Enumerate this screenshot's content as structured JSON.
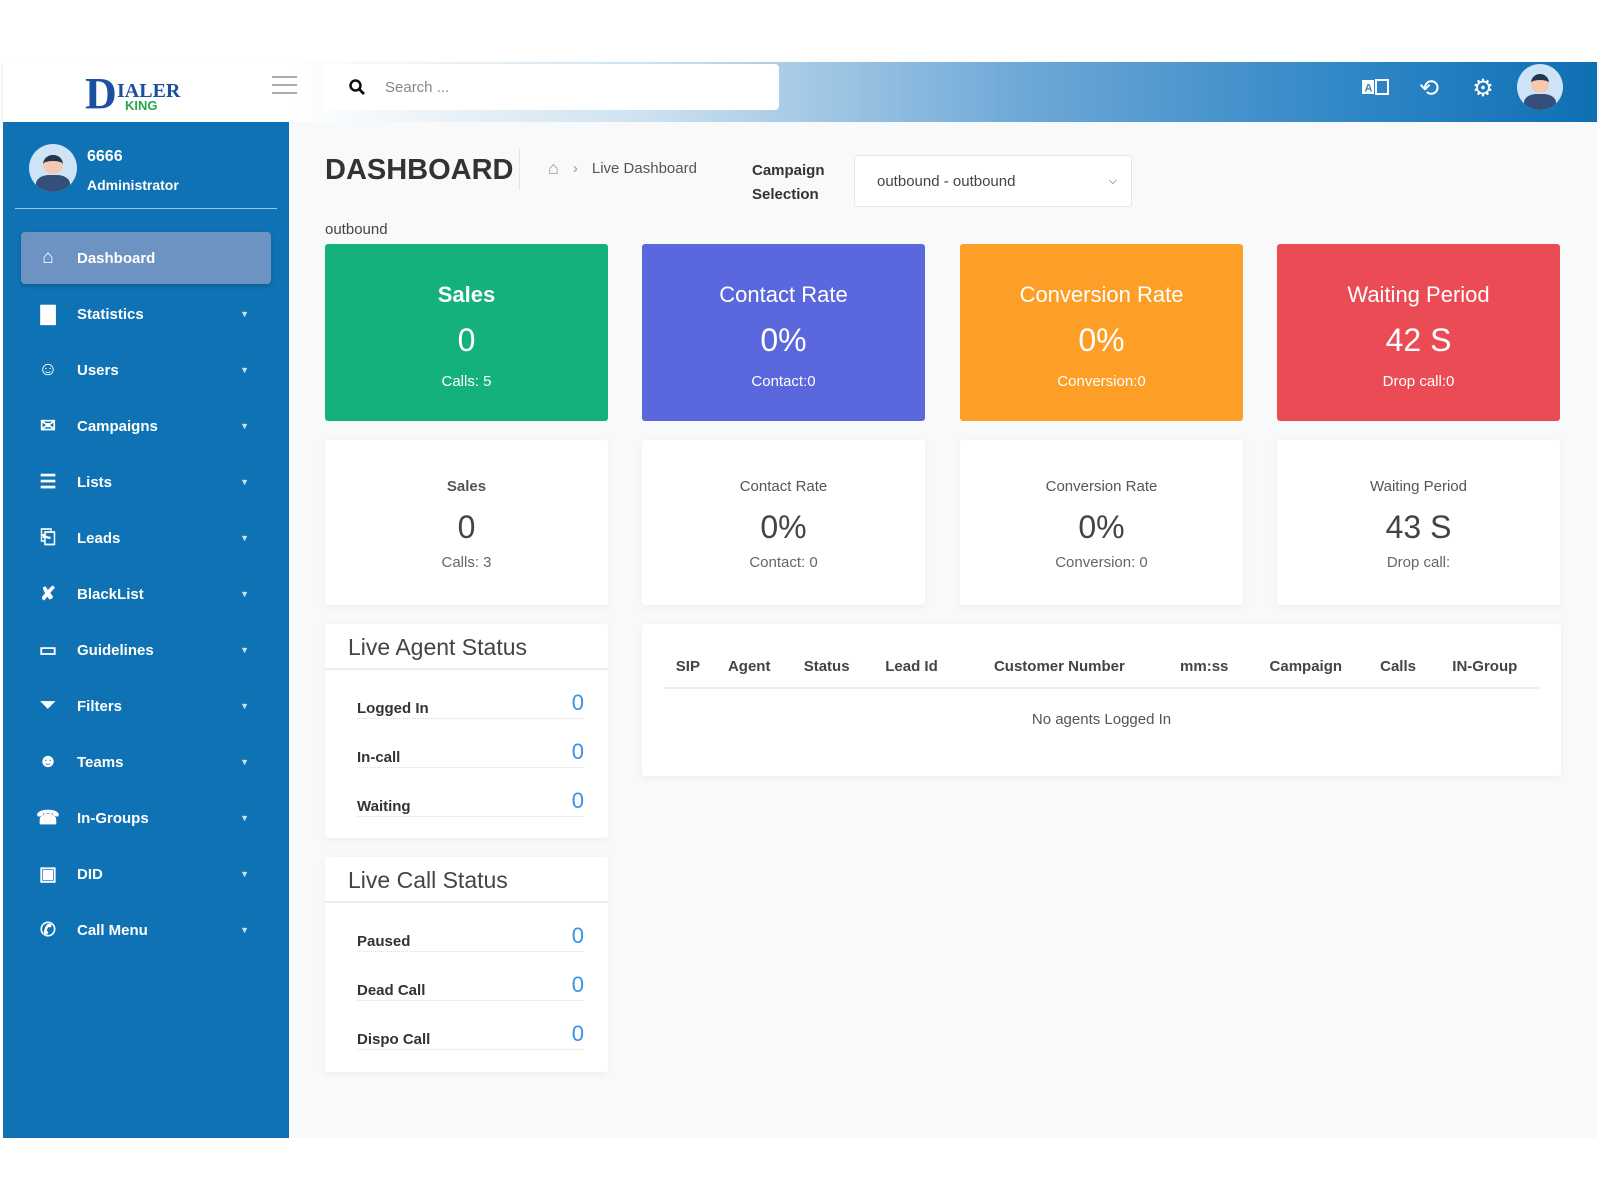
{
  "header": {
    "logo_text": "DIALER KING",
    "search_placeholder": "Search ...",
    "icons": [
      "translate-icon",
      "history-icon",
      "settings-icon",
      "avatar"
    ]
  },
  "sidebar": {
    "user": {
      "name": "6666",
      "role": "Administrator"
    },
    "items": [
      {
        "label": "Dashboard",
        "icon": "home-icon",
        "active": true
      },
      {
        "label": "Statistics",
        "icon": "bar-chart-icon"
      },
      {
        "label": "Users",
        "icon": "user-icon"
      },
      {
        "label": "Campaigns",
        "icon": "megaphone-icon"
      },
      {
        "label": "Lists",
        "icon": "list-icon"
      },
      {
        "label": "Leads",
        "icon": "file-icon"
      },
      {
        "label": "BlackList",
        "icon": "blocked-phone-icon"
      },
      {
        "label": "Guidelines",
        "icon": "credit-card-icon"
      },
      {
        "label": "Filters",
        "icon": "filter-icon"
      },
      {
        "label": "Teams",
        "icon": "users-icon"
      },
      {
        "label": "In-Groups",
        "icon": "phone-icon"
      },
      {
        "label": "DID",
        "icon": "phone-square-icon"
      },
      {
        "label": "Call Menu",
        "icon": "phone-volume-icon"
      }
    ]
  },
  "page": {
    "title": "DASHBOARD",
    "breadcrumb": "Live Dashboard",
    "campaign_label": "Campaign Selection",
    "campaign_value": "outbound - outbound",
    "subtitle": "outbound"
  },
  "colors": {
    "sidebar": "#0f72b5",
    "sales": "#14b07e",
    "contact": "#5a67dd",
    "conversion": "#fd9f27",
    "waiting": "#eb4b55",
    "count": "#3a92e6"
  },
  "top_cards": [
    {
      "title": "Sales",
      "value": "0",
      "sub": "Calls: 5"
    },
    {
      "title": "Contact Rate",
      "value": "0%",
      "sub": "Contact:0"
    },
    {
      "title": "Conversion Rate",
      "value": "0%",
      "sub": "Conversion:0"
    },
    {
      "title": "Waiting Period",
      "value": "42 S",
      "sub": "Drop call:0"
    }
  ],
  "cards": [
    {
      "title": "Sales",
      "value": "0",
      "sub": "Calls: 3"
    },
    {
      "title": "Contact Rate",
      "value": "0%",
      "sub": "Contact: 0"
    },
    {
      "title": "Conversion Rate",
      "value": "0%",
      "sub": "Conversion: 0"
    },
    {
      "title": "Waiting Period",
      "value": "43 S",
      "sub": "Drop call:"
    }
  ],
  "agent_status": {
    "title": "Live Agent Status",
    "rows": [
      {
        "label": "Logged In",
        "value": "0"
      },
      {
        "label": "In-call",
        "value": "0"
      },
      {
        "label": "Waiting",
        "value": "0"
      }
    ]
  },
  "call_status": {
    "title": "Live Call Status",
    "rows": [
      {
        "label": "Paused",
        "value": "0"
      },
      {
        "label": "Dead Call",
        "value": "0"
      },
      {
        "label": "Dispo Call",
        "value": "0"
      }
    ]
  },
  "agents_table": {
    "columns": [
      "SIP",
      "Agent",
      "Status",
      "Lead Id",
      "Customer Number",
      "mm:ss",
      "Campaign",
      "Calls",
      "IN-Group"
    ],
    "empty": "No agents Logged In"
  }
}
